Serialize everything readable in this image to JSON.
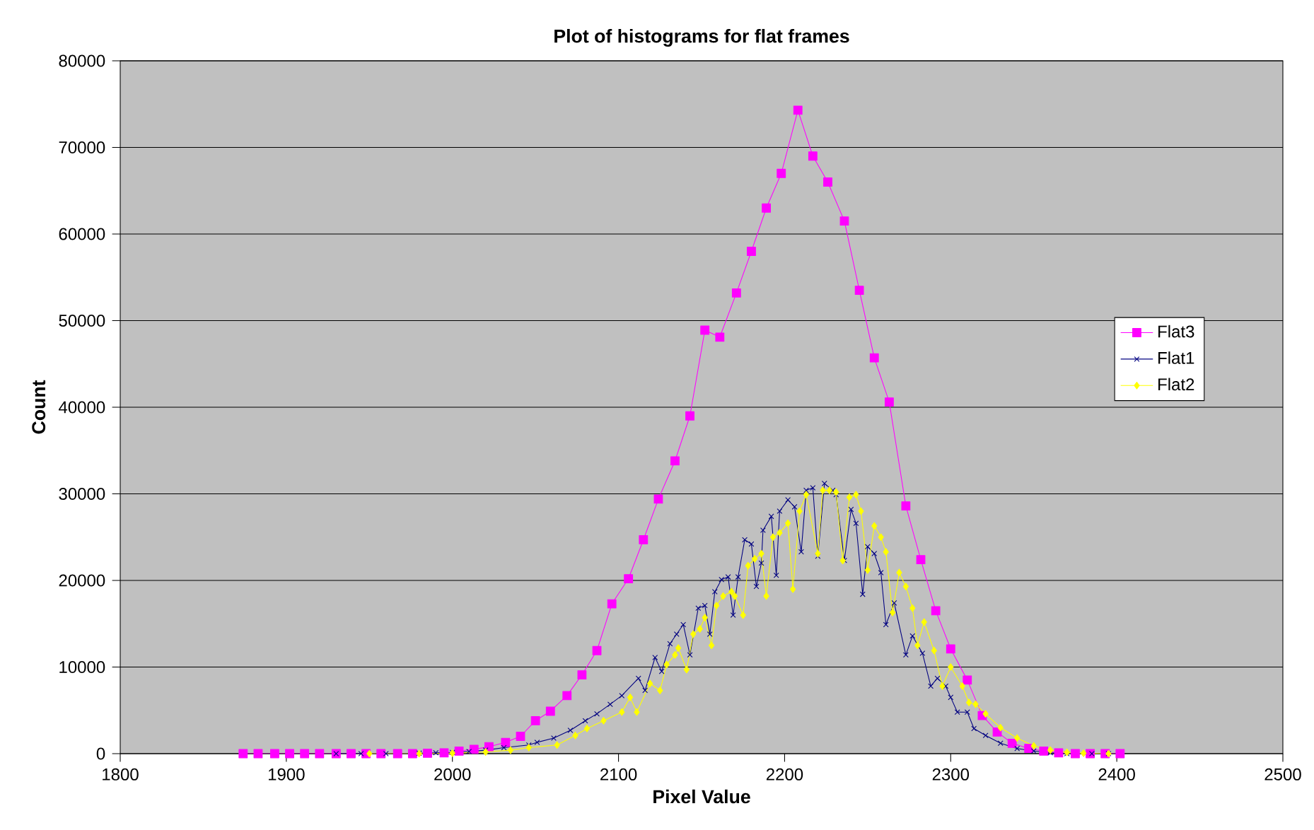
{
  "chart_data": {
    "type": "line",
    "title": "Plot of histograms  for flat frames",
    "xlabel": "Pixel Value",
    "ylabel": "Count",
    "xlim": [
      1800,
      2500
    ],
    "xticks": [
      1800,
      1900,
      2000,
      2100,
      2200,
      2300,
      2400,
      2500
    ],
    "ylim": [
      0,
      80000
    ],
    "yticks": [
      0,
      10000,
      20000,
      30000,
      40000,
      50000,
      60000,
      70000,
      80000
    ],
    "grid": "y",
    "legend": "right",
    "line_style": "solid",
    "series": [
      {
        "name": "Flat3",
        "color": "#ff00ff",
        "marker": "square",
        "x": [
          1874,
          1883,
          1893,
          1902,
          1911,
          1920,
          1930,
          1939,
          1948,
          1957,
          1967,
          1976,
          1985,
          1995,
          2004,
          2013,
          2022,
          2032,
          2041,
          2050,
          2059,
          2069,
          2078,
          2087,
          2096,
          2106,
          2115,
          2124,
          2134,
          2143,
          2152,
          2161,
          2171,
          2180,
          2189,
          2198,
          2208,
          2217,
          2226,
          2236,
          2245,
          2254,
          2263,
          2273,
          2282,
          2291,
          2300,
          2310,
          2319,
          2328,
          2337,
          2347,
          2356,
          2365,
          2375,
          2384,
          2393,
          2402
        ],
        "values": [
          0,
          0,
          0,
          0,
          0,
          0,
          0,
          0,
          0,
          0,
          0,
          0,
          50,
          100,
          300,
          500,
          800,
          1300,
          2000,
          3800,
          4900,
          6700,
          9100,
          11900,
          17300,
          20200,
          24700,
          29400,
          33800,
          39000,
          48900,
          48100,
          53200,
          58000,
          63000,
          67000,
          74300,
          69000,
          66000,
          61500,
          53500,
          45700,
          40600,
          28600,
          22400,
          16500,
          12100,
          8500,
          4400,
          2500,
          1200,
          600,
          300,
          100,
          0,
          0,
          0,
          0
        ]
      },
      {
        "name": "Flat1",
        "color": "#000080",
        "marker": "cross",
        "x": [
          1930,
          1945,
          1960,
          1980,
          1990,
          2000,
          2010,
          2020,
          2031,
          2046,
          2051,
          2061,
          2071,
          2080,
          2087,
          2095,
          2102,
          2112,
          2116,
          2122,
          2126,
          2131,
          2135,
          2139,
          2143,
          2148,
          2152,
          2155,
          2158,
          2162,
          2166,
          2169,
          2172,
          2176,
          2180,
          2183,
          2186,
          2187,
          2192,
          2195,
          2197,
          2202,
          2206,
          2210,
          2213,
          2217,
          2220,
          2224,
          2229,
          2231,
          2236,
          2240,
          2243,
          2247,
          2250,
          2254,
          2258,
          2261,
          2266,
          2273,
          2277,
          2283,
          2288,
          2292,
          2297,
          2300,
          2304,
          2310,
          2314,
          2321,
          2330,
          2340,
          2350,
          2360,
          2370,
          2385,
          2395
        ],
        "values": [
          0,
          0,
          0,
          50,
          100,
          150,
          250,
          400,
          700,
          1000,
          1300,
          1800,
          2700,
          3800,
          4600,
          5700,
          6700,
          8700,
          7300,
          11100,
          9500,
          12700,
          13800,
          14900,
          11400,
          16800,
          17100,
          13800,
          18700,
          20100,
          20400,
          16000,
          20400,
          24700,
          24200,
          19300,
          22000,
          25800,
          27400,
          20600,
          28000,
          29300,
          28500,
          23300,
          30400,
          30700,
          22800,
          31200,
          30400,
          29900,
          22300,
          28200,
          26600,
          18400,
          23900,
          23100,
          20900,
          14900,
          17400,
          11400,
          13600,
          11600,
          7800,
          8700,
          7800,
          6500,
          4800,
          4800,
          2900,
          2100,
          1200,
          600,
          300,
          100,
          0,
          0,
          0
        ]
      },
      {
        "name": "Flat2",
        "color": "#ffff00",
        "marker": "diamond",
        "x": [
          1950,
          1980,
          2000,
          2020,
          2035,
          2046,
          2063,
          2074,
          2081,
          2091,
          2102,
          2107,
          2111,
          2119,
          2125,
          2129,
          2134,
          2136,
          2141,
          2145,
          2149,
          2152,
          2156,
          2159,
          2163,
          2168,
          2170,
          2175,
          2178,
          2182,
          2186,
          2189,
          2193,
          2197,
          2202,
          2205,
          2209,
          2213,
          2220,
          2223,
          2227,
          2231,
          2235,
          2239,
          2243,
          2246,
          2250,
          2254,
          2258,
          2261,
          2265,
          2269,
          2273,
          2277,
          2280,
          2284,
          2290,
          2295,
          2300,
          2307,
          2311,
          2315,
          2321,
          2330,
          2340,
          2350,
          2360,
          2370,
          2380,
          2395
        ],
        "values": [
          0,
          0,
          50,
          200,
          400,
          700,
          1000,
          2100,
          2900,
          3800,
          4800,
          6500,
          4800,
          8100,
          7300,
          10300,
          11400,
          12200,
          9700,
          13800,
          14400,
          15700,
          12500,
          17100,
          18200,
          18700,
          18200,
          16000,
          21700,
          22500,
          23100,
          18200,
          25000,
          25500,
          26600,
          19000,
          28000,
          29900,
          23100,
          30400,
          30400,
          30200,
          22300,
          29600,
          29900,
          28000,
          21200,
          26300,
          25000,
          23300,
          16300,
          20900,
          19300,
          16800,
          12500,
          15200,
          11900,
          7800,
          10000,
          7800,
          5900,
          5700,
          4600,
          3000,
          1800,
          900,
          400,
          150,
          50,
          0
        ]
      }
    ]
  }
}
